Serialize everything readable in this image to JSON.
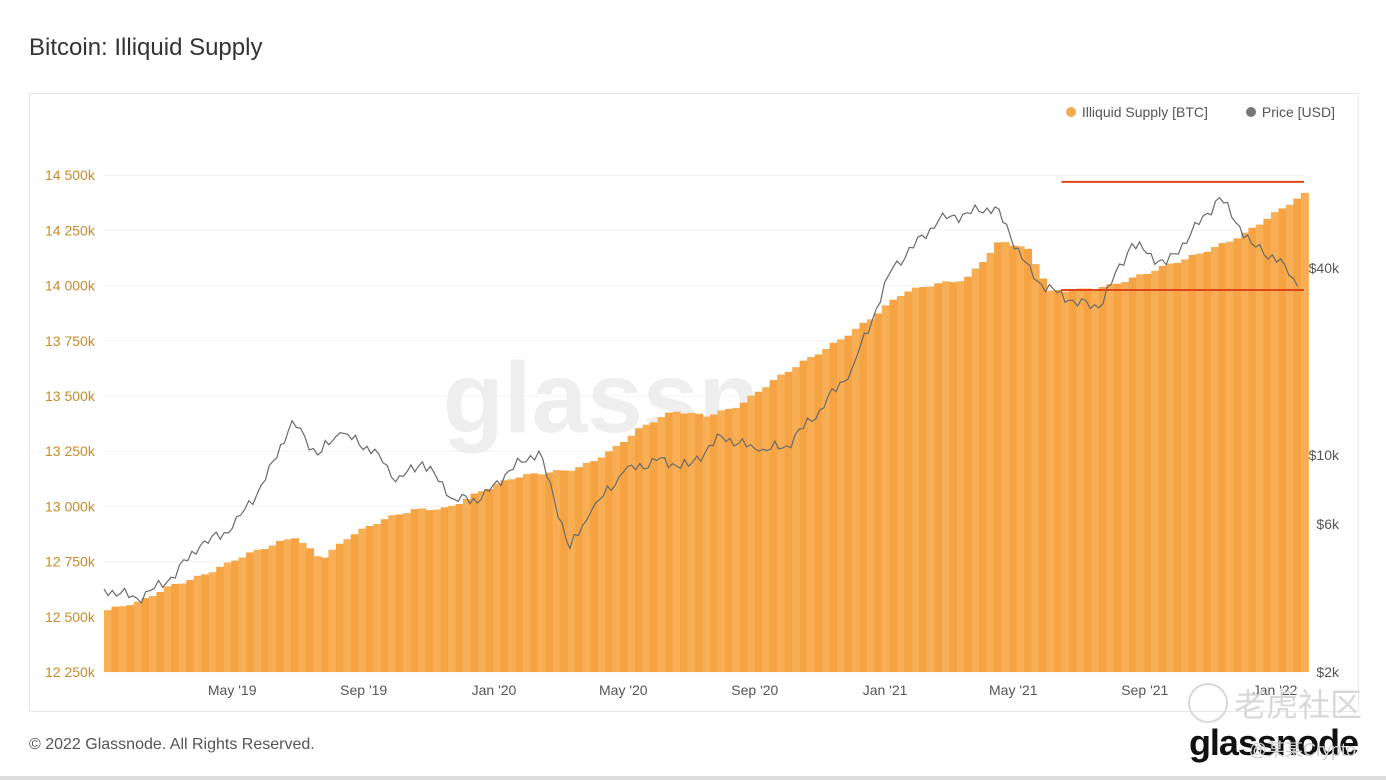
{
  "header": {
    "title": "Bitcoin: Illiquid Supply"
  },
  "legend": [
    {
      "label": "Illiquid Supply [BTC]",
      "color": "#f7a94b"
    },
    {
      "label": "Price [USD]",
      "color": "#777777"
    }
  ],
  "footer": {
    "copyright": "© 2022 Glassnode. All Rights Reserved.",
    "brand": "glassnode",
    "watermark_text": "老虎社区",
    "handle": "@某某Crypto"
  },
  "chart_data": {
    "type": "area",
    "watermark": "glassnode",
    "x_ticks": [
      "May '19",
      "Sep '19",
      "Jan '20",
      "May '20",
      "Sep '20",
      "Jan '21",
      "May '21",
      "Sep '21",
      "Jan '22"
    ],
    "y_left": {
      "label": "Illiquid Supply [BTC]",
      "ticks": [
        "12 250k",
        "12 500k",
        "12 750k",
        "13 000k",
        "13 250k",
        "13 500k",
        "13 750k",
        "14 000k",
        "14 250k",
        "14 500k"
      ],
      "tick_values": [
        12250000,
        12500000,
        12750000,
        13000000,
        13250000,
        13500000,
        13750000,
        14000000,
        14250000,
        14500000
      ],
      "range": [
        12250000,
        14750000
      ]
    },
    "y_right": {
      "label": "Price [USD]",
      "scale": "log",
      "ticks": [
        "$2k",
        "$6k",
        "$10k",
        "$40k"
      ],
      "tick_values": [
        2000,
        6000,
        10000,
        40000
      ],
      "range": [
        2000,
        120000
      ]
    },
    "x_range": [
      "2019-01-01",
      "2022-01-28"
    ],
    "series": [
      {
        "name": "Illiquid Supply [BTC]",
        "axis": "left",
        "color": "#f7a94b",
        "points": [
          [
            "2019-01-01",
            12530000
          ],
          [
            "2019-02-01",
            12560000
          ],
          [
            "2019-03-01",
            12640000
          ],
          [
            "2019-04-01",
            12700000
          ],
          [
            "2019-05-01",
            12760000
          ],
          [
            "2019-06-01",
            12810000
          ],
          [
            "2019-06-25",
            12860000
          ],
          [
            "2019-07-20",
            12770000
          ],
          [
            "2019-08-15",
            12870000
          ],
          [
            "2019-09-15",
            12930000
          ],
          [
            "2019-10-15",
            12980000
          ],
          [
            "2019-11-15",
            13000000
          ],
          [
            "2019-12-15",
            13070000
          ],
          [
            "2020-01-15",
            13120000
          ],
          [
            "2020-02-15",
            13150000
          ],
          [
            "2020-03-15",
            13180000
          ],
          [
            "2020-04-15",
            13250000
          ],
          [
            "2020-05-15",
            13350000
          ],
          [
            "2020-06-15",
            13430000
          ],
          [
            "2020-07-15",
            13420000
          ],
          [
            "2020-08-15",
            13460000
          ],
          [
            "2020-09-15",
            13560000
          ],
          [
            "2020-10-15",
            13660000
          ],
          [
            "2020-11-15",
            13760000
          ],
          [
            "2020-12-15",
            13850000
          ],
          [
            "2021-01-15",
            13960000
          ],
          [
            "2021-02-15",
            14010000
          ],
          [
            "2021-03-15",
            14040000
          ],
          [
            "2021-04-15",
            14200000
          ],
          [
            "2021-05-10",
            14160000
          ],
          [
            "2021-06-01",
            13970000
          ],
          [
            "2021-07-01",
            13990000
          ],
          [
            "2021-08-01",
            14010000
          ],
          [
            "2021-09-01",
            14050000
          ],
          [
            "2021-10-01",
            14110000
          ],
          [
            "2021-11-01",
            14180000
          ],
          [
            "2021-12-01",
            14240000
          ],
          [
            "2022-01-01",
            14330000
          ],
          [
            "2022-01-28",
            14420000
          ]
        ]
      },
      {
        "name": "Price [USD]",
        "axis": "right",
        "color": "#777777",
        "points": [
          [
            "2019-01-01",
            3700
          ],
          [
            "2019-02-01",
            3450
          ],
          [
            "2019-03-01",
            3900
          ],
          [
            "2019-04-01",
            5100
          ],
          [
            "2019-05-01",
            5800
          ],
          [
            "2019-06-01",
            8300
          ],
          [
            "2019-06-26",
            12900
          ],
          [
            "2019-07-20",
            10000
          ],
          [
            "2019-08-10",
            11800
          ],
          [
            "2019-09-15",
            10100
          ],
          [
            "2019-10-01",
            8200
          ],
          [
            "2019-10-26",
            9500
          ],
          [
            "2019-11-25",
            7200
          ],
          [
            "2019-12-20",
            7200
          ],
          [
            "2020-01-15",
            8900
          ],
          [
            "2020-02-12",
            10300
          ],
          [
            "2020-03-12",
            5000
          ],
          [
            "2020-04-01",
            6600
          ],
          [
            "2020-05-01",
            8800
          ],
          [
            "2020-06-01",
            9600
          ],
          [
            "2020-07-01",
            9200
          ],
          [
            "2020-08-01",
            11500
          ],
          [
            "2020-09-05",
            10300
          ],
          [
            "2020-10-01",
            10700
          ],
          [
            "2020-11-01",
            14000
          ],
          [
            "2020-12-01",
            19000
          ],
          [
            "2021-01-08",
            40000
          ],
          [
            "2021-02-20",
            57000
          ],
          [
            "2021-04-14",
            63000
          ],
          [
            "2021-05-20",
            37000
          ],
          [
            "2021-06-22",
            31500
          ],
          [
            "2021-07-20",
            29800
          ],
          [
            "2021-08-20",
            48000
          ],
          [
            "2021-09-21",
            41000
          ],
          [
            "2021-11-10",
            67500
          ],
          [
            "2021-12-10",
            48000
          ],
          [
            "2022-01-10",
            41000
          ],
          [
            "2022-01-22",
            35000
          ]
        ]
      }
    ],
    "annotations": [
      {
        "type": "hline",
        "color": "#e0441b",
        "from": "2021-06-15",
        "to": "2022-01-28",
        "value": 14470000
      },
      {
        "type": "hline",
        "color": "#e0441b",
        "from": "2021-06-15",
        "to": "2022-01-28",
        "value": 13980000
      }
    ]
  }
}
